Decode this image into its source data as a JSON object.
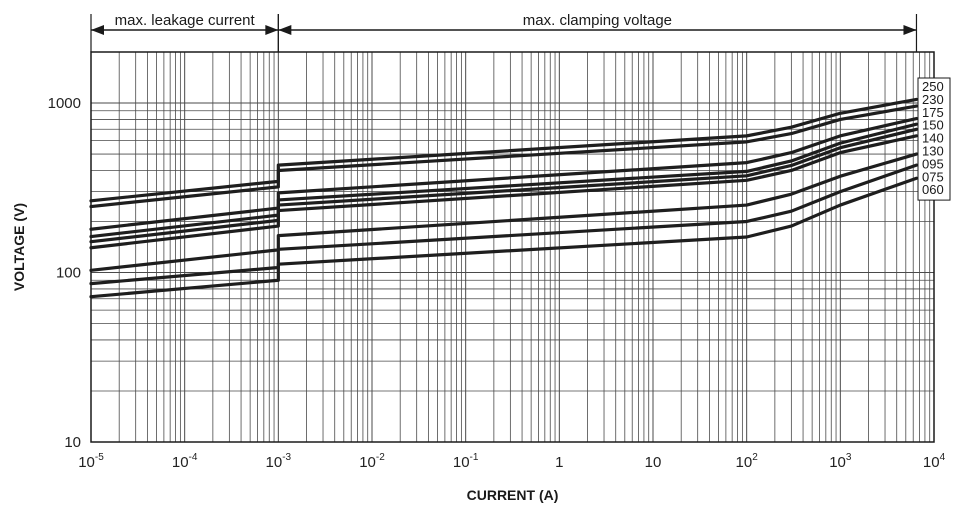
{
  "chart_data": {
    "type": "line",
    "title": "",
    "xlabel": "CURRENT (A)",
    "ylabel": "VOLTAGE (V)",
    "x_scale": "log",
    "y_scale": "log",
    "xlim": [
      1e-05,
      10000
    ],
    "ylim": [
      10,
      2000
    ],
    "grid": true,
    "x_ticks": [
      {
        "base": "10",
        "exp": "-5",
        "value": 1e-05
      },
      {
        "base": "10",
        "exp": "-4",
        "value": 0.0001
      },
      {
        "base": "10",
        "exp": "-3",
        "value": 0.001
      },
      {
        "base": "10",
        "exp": "-2",
        "value": 0.01
      },
      {
        "base": "10",
        "exp": "-1",
        "value": 0.1
      },
      {
        "base": "1",
        "exp": "",
        "value": 1
      },
      {
        "base": "10",
        "exp": "",
        "value": 10
      },
      {
        "base": "10",
        "exp": "2",
        "value": 100
      },
      {
        "base": "10",
        "exp": "3",
        "value": 1000
      },
      {
        "base": "10",
        "exp": "4",
        "value": 10000
      }
    ],
    "y_ticks": [
      {
        "label": "10",
        "value": 10
      },
      {
        "label": "100",
        "value": 100
      },
      {
        "label": "1000",
        "value": 1000
      }
    ],
    "annotations": [
      {
        "text": "max. leakage current",
        "x_from": 1e-05,
        "x_to": 0.001
      },
      {
        "text": "max. clamping voltage",
        "x_from": 0.001,
        "x_to": 6500
      }
    ],
    "legend": {
      "placement": "right",
      "entries": [
        "250",
        "230",
        "175",
        "150",
        "140",
        "130",
        "095",
        "075",
        "060"
      ]
    },
    "series": [
      {
        "name": "250",
        "points": [
          [
            1e-05,
            265
          ],
          [
            0.001,
            345
          ],
          [
            0.001,
            430
          ],
          [
            100,
            640
          ],
          [
            300,
            720
          ],
          [
            1000,
            870
          ],
          [
            6500,
            1050
          ]
        ]
      },
      {
        "name": "230",
        "points": [
          [
            1e-05,
            245
          ],
          [
            0.001,
            320
          ],
          [
            0.001,
            400
          ],
          [
            100,
            590
          ],
          [
            300,
            660
          ],
          [
            1000,
            800
          ],
          [
            6500,
            960
          ]
        ]
      },
      {
        "name": "175",
        "points": [
          [
            1e-05,
            180
          ],
          [
            0.001,
            240
          ],
          [
            0.001,
            295
          ],
          [
            100,
            445
          ],
          [
            300,
            510
          ],
          [
            1000,
            640
          ],
          [
            6500,
            810
          ]
        ]
      },
      {
        "name": "150",
        "points": [
          [
            1e-05,
            163
          ],
          [
            0.001,
            218
          ],
          [
            0.001,
            268
          ],
          [
            100,
            395
          ],
          [
            300,
            455
          ],
          [
            1000,
            580
          ],
          [
            6500,
            750
          ]
        ]
      },
      {
        "name": "140",
        "points": [
          [
            1e-05,
            152
          ],
          [
            0.001,
            203
          ],
          [
            0.001,
            250
          ],
          [
            100,
            372
          ],
          [
            300,
            428
          ],
          [
            1000,
            545
          ],
          [
            6500,
            700
          ]
        ]
      },
      {
        "name": "130",
        "points": [
          [
            1e-05,
            140
          ],
          [
            0.001,
            188
          ],
          [
            0.001,
            232
          ],
          [
            100,
            350
          ],
          [
            300,
            400
          ],
          [
            1000,
            510
          ],
          [
            6500,
            640
          ]
        ]
      },
      {
        "name": "095",
        "points": [
          [
            1e-05,
            103
          ],
          [
            0.001,
            136
          ],
          [
            0.001,
            165
          ],
          [
            100,
            250
          ],
          [
            300,
            290
          ],
          [
            1000,
            370
          ],
          [
            6500,
            500
          ]
        ]
      },
      {
        "name": "075",
        "points": [
          [
            1e-05,
            86
          ],
          [
            0.001,
            107
          ],
          [
            0.001,
            137
          ],
          [
            100,
            200
          ],
          [
            300,
            230
          ],
          [
            1000,
            300
          ],
          [
            6500,
            430
          ]
        ]
      },
      {
        "name": "060",
        "points": [
          [
            1e-05,
            72
          ],
          [
            0.001,
            90
          ],
          [
            0.001,
            112
          ],
          [
            100,
            162
          ],
          [
            300,
            188
          ],
          [
            1000,
            250
          ],
          [
            6500,
            360
          ]
        ]
      }
    ]
  }
}
